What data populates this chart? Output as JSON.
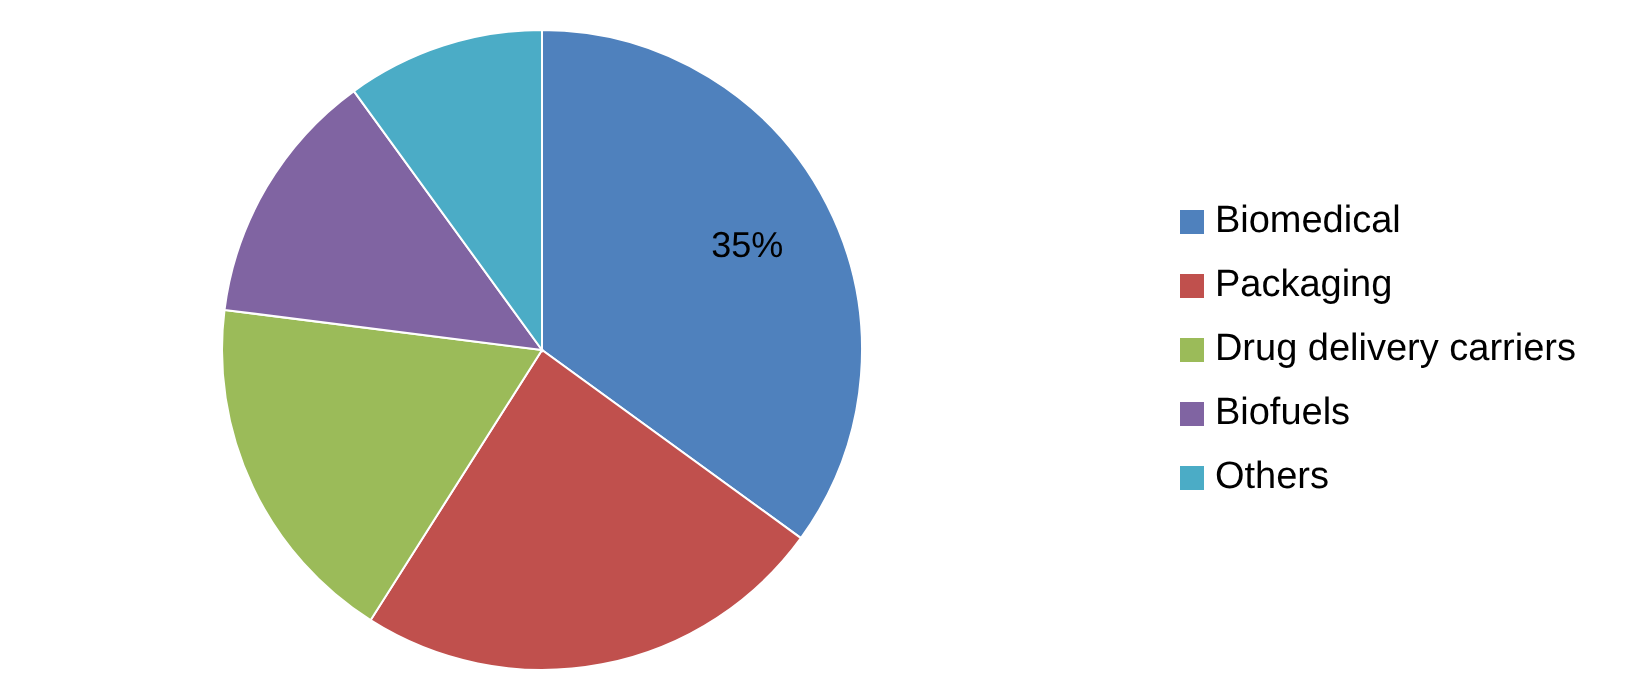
{
  "chart_data": {
    "type": "pie",
    "categories": [
      "Biomedical",
      "Packaging",
      "Drug delivery carriers",
      "Biofuels",
      "Others"
    ],
    "values": [
      35,
      24,
      18,
      13,
      10
    ],
    "value_labels": [
      "35%",
      null,
      null,
      null,
      null
    ],
    "colors": [
      "#4f81bd",
      "#c0504d",
      "#9bbb59",
      "#8064a2",
      "#4bacc6"
    ],
    "legend": "right"
  }
}
